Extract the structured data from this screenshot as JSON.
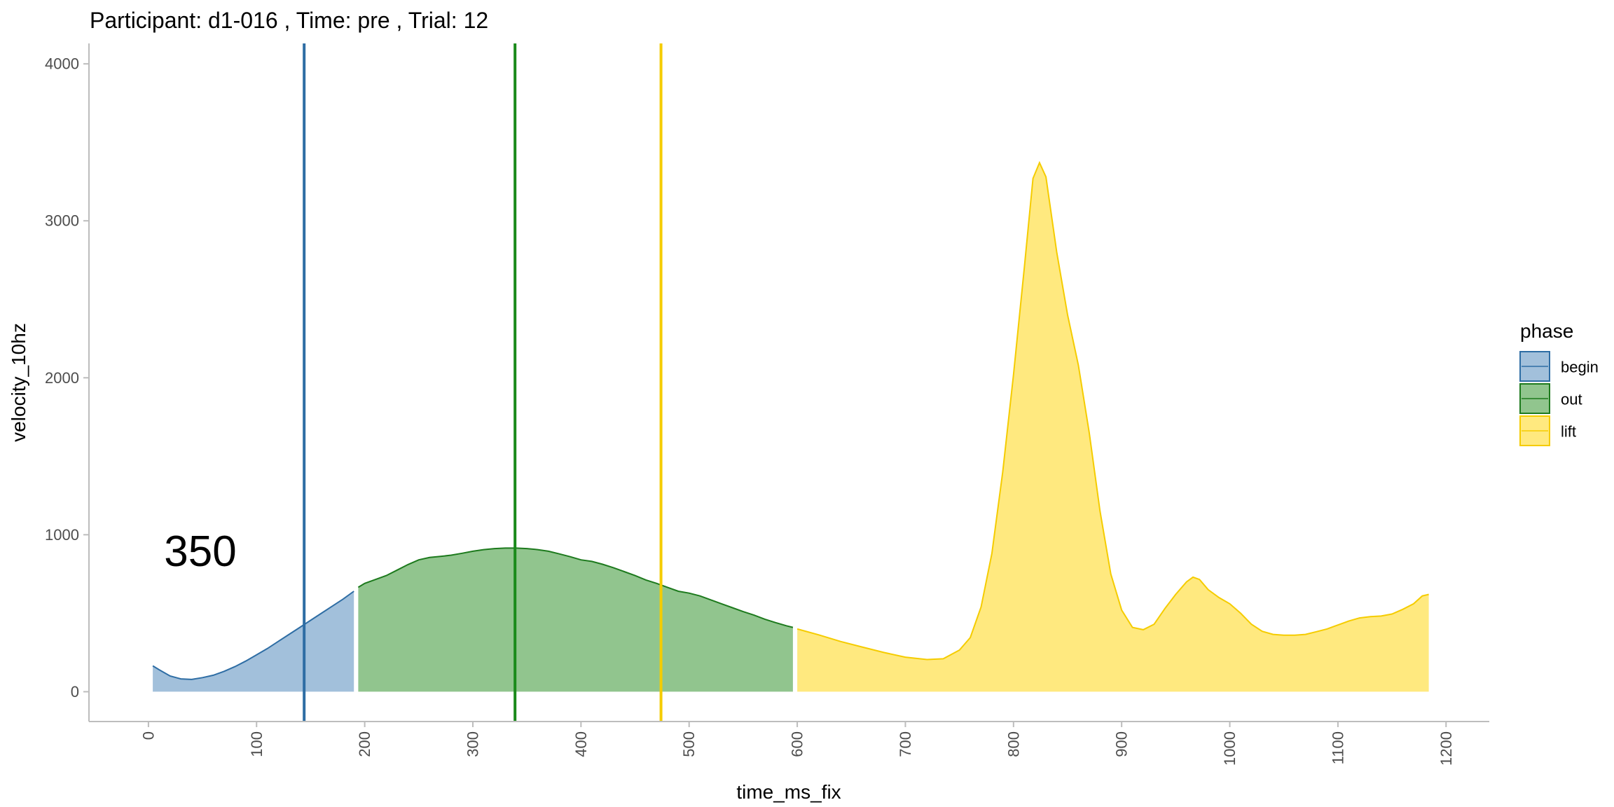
{
  "chart_data": {
    "type": "area",
    "title": "Participant:  d1-016 , Time: pre , Trial:  12",
    "xlabel": "time_ms_fix",
    "ylabel": "velocity_10hz",
    "xlim": [
      -55,
      1240
    ],
    "ylim": [
      -190,
      4130
    ],
    "x_ticks": [
      0,
      100,
      200,
      300,
      400,
      500,
      600,
      700,
      800,
      900,
      1000,
      1100,
      1200
    ],
    "x_tick_labels": [
      "0",
      "100",
      "200",
      "300",
      "400",
      "500",
      "600",
      "700",
      "800",
      "900",
      "1000",
      "1100",
      "1200"
    ],
    "y_ticks": [
      0,
      1000,
      2000,
      3000,
      4000
    ],
    "y_tick_labels": [
      "0",
      "1000",
      "2000",
      "3000",
      "4000"
    ],
    "grid": false,
    "legend": {
      "title": "phase",
      "position": "right",
      "entries": [
        "begin",
        "out",
        "lift"
      ]
    },
    "annotation": {
      "text": "350",
      "x": 48,
      "y": 900
    },
    "vlines": [
      {
        "x": 144,
        "color": "#2e6da4"
      },
      {
        "x": 339,
        "color": "#1a8a1a"
      },
      {
        "x": 474,
        "color": "#f5cc00"
      }
    ],
    "series": [
      {
        "name": "begin",
        "fill": "#a2c0db",
        "stroke": "#2e6da4",
        "points": [
          [
            4,
            165
          ],
          [
            10,
            140
          ],
          [
            20,
            100
          ],
          [
            30,
            82
          ],
          [
            40,
            78
          ],
          [
            50,
            90
          ],
          [
            60,
            105
          ],
          [
            70,
            130
          ],
          [
            80,
            160
          ],
          [
            90,
            195
          ],
          [
            100,
            235
          ],
          [
            110,
            275
          ],
          [
            120,
            320
          ],
          [
            130,
            365
          ],
          [
            140,
            410
          ],
          [
            150,
            455
          ],
          [
            160,
            500
          ],
          [
            170,
            545
          ],
          [
            180,
            590
          ],
          [
            190,
            640
          ]
        ]
      },
      {
        "name": "out",
        "fill": "#91c58e",
        "stroke": "#1d7a1d",
        "points": [
          [
            194,
            665
          ],
          [
            200,
            690
          ],
          [
            210,
            715
          ],
          [
            220,
            740
          ],
          [
            230,
            775
          ],
          [
            240,
            810
          ],
          [
            250,
            840
          ],
          [
            260,
            855
          ],
          [
            270,
            862
          ],
          [
            280,
            870
          ],
          [
            290,
            882
          ],
          [
            300,
            895
          ],
          [
            310,
            905
          ],
          [
            320,
            912
          ],
          [
            330,
            915
          ],
          [
            340,
            915
          ],
          [
            350,
            912
          ],
          [
            360,
            905
          ],
          [
            370,
            895
          ],
          [
            380,
            878
          ],
          [
            390,
            860
          ],
          [
            400,
            840
          ],
          [
            410,
            830
          ],
          [
            420,
            812
          ],
          [
            430,
            790
          ],
          [
            440,
            765
          ],
          [
            450,
            740
          ],
          [
            460,
            712
          ],
          [
            470,
            690
          ],
          [
            480,
            665
          ],
          [
            490,
            640
          ],
          [
            500,
            628
          ],
          [
            510,
            610
          ],
          [
            520,
            585
          ],
          [
            530,
            560
          ],
          [
            540,
            535
          ],
          [
            550,
            510
          ],
          [
            560,
            488
          ],
          [
            570,
            462
          ],
          [
            580,
            440
          ],
          [
            590,
            420
          ],
          [
            596,
            410
          ]
        ]
      },
      {
        "name": "lift",
        "fill": "#ffe97f",
        "stroke": "#f5cc00",
        "points": [
          [
            600,
            400
          ],
          [
            620,
            362
          ],
          [
            640,
            320
          ],
          [
            660,
            285
          ],
          [
            680,
            250
          ],
          [
            700,
            220
          ],
          [
            720,
            205
          ],
          [
            735,
            210
          ],
          [
            750,
            265
          ],
          [
            760,
            345
          ],
          [
            770,
            540
          ],
          [
            780,
            880
          ],
          [
            790,
            1400
          ],
          [
            800,
            2020
          ],
          [
            810,
            2700
          ],
          [
            818,
            3270
          ],
          [
            824,
            3370
          ],
          [
            830,
            3280
          ],
          [
            840,
            2800
          ],
          [
            850,
            2400
          ],
          [
            860,
            2080
          ],
          [
            870,
            1650
          ],
          [
            880,
            1150
          ],
          [
            890,
            750
          ],
          [
            900,
            520
          ],
          [
            910,
            410
          ],
          [
            920,
            395
          ],
          [
            930,
            430
          ],
          [
            940,
            530
          ],
          [
            950,
            620
          ],
          [
            960,
            700
          ],
          [
            966,
            730
          ],
          [
            972,
            715
          ],
          [
            980,
            650
          ],
          [
            990,
            600
          ],
          [
            1000,
            560
          ],
          [
            1010,
            500
          ],
          [
            1020,
            430
          ],
          [
            1030,
            385
          ],
          [
            1040,
            365
          ],
          [
            1050,
            360
          ],
          [
            1060,
            360
          ],
          [
            1070,
            365
          ],
          [
            1080,
            382
          ],
          [
            1090,
            400
          ],
          [
            1100,
            425
          ],
          [
            1110,
            450
          ],
          [
            1120,
            470
          ],
          [
            1130,
            478
          ],
          [
            1140,
            482
          ],
          [
            1150,
            495
          ],
          [
            1160,
            525
          ],
          [
            1170,
            560
          ],
          [
            1178,
            610
          ],
          [
            1184,
            620
          ]
        ]
      }
    ]
  }
}
